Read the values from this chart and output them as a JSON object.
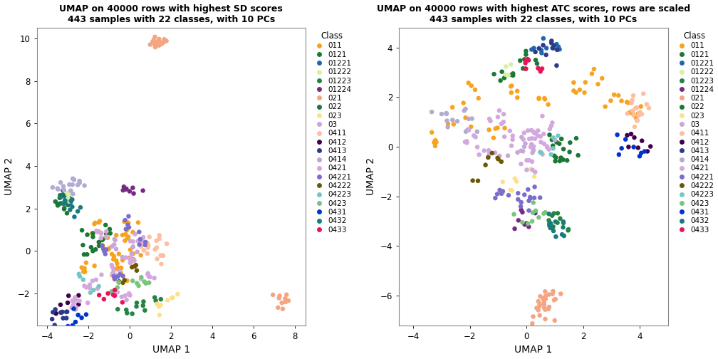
{
  "title1": "UMAP on 40000 rows with highest SD scores\n443 samples with 22 classes, with 10 PCs",
  "title2": "UMAP on 40000 rows with highest ATC scores, rows are scaled\n443 samples with 22 classes, with 10 PCs",
  "xlabel": "UMAP 1",
  "ylabel": "UMAP 2",
  "legend_title": "Class",
  "classes": [
    "011",
    "0121",
    "01221",
    "01222",
    "01223",
    "01224",
    "021",
    "022",
    "023",
    "03",
    "0411",
    "0412",
    "0413",
    "0414",
    "0421",
    "04221",
    "04222",
    "04223",
    "0423",
    "0431",
    "0432",
    "0433"
  ],
  "colors": [
    "#F8A31F",
    "#1B7837",
    "#2166AC",
    "#D9F0A3",
    "#238443",
    "#762A83",
    "#F4A582",
    "#1A7834",
    "#FEE08B",
    "#C7A7D8",
    "#FDBF9F",
    "#40004B",
    "#2B3A8A",
    "#B2ABD2",
    "#D3A8DF",
    "#7B6ECA",
    "#6B5900",
    "#74C8C2",
    "#78C679",
    "#0033CC",
    "#197B7B",
    "#E8145A"
  ],
  "plot1_xlim": [
    -4.5,
    8.5
  ],
  "plot1_ylim": [
    -3.5,
    10.5
  ],
  "plot1_xticks": [
    -4,
    -2,
    0,
    2,
    4,
    6,
    8
  ],
  "plot1_yticks": [
    -2,
    0,
    2,
    4,
    6,
    8,
    10
  ],
  "plot2_xlim": [
    -4.5,
    5.0
  ],
  "plot2_ylim": [
    -7.2,
    4.8
  ],
  "plot2_xticks": [
    -4,
    -2,
    0,
    2,
    4
  ],
  "plot2_yticks": [
    -6,
    -4,
    -2,
    0,
    2,
    4
  ],
  "point_size": 22,
  "figsize": [
    10.08,
    5.04
  ],
  "dpi": 100
}
